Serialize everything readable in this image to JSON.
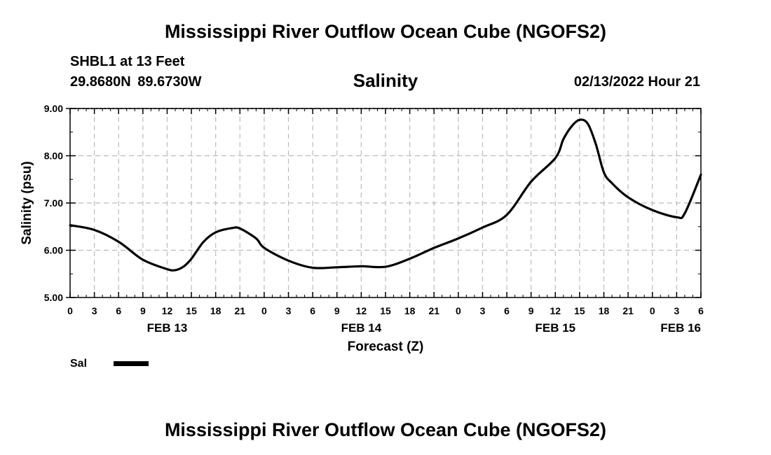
{
  "header": {
    "title": "Mississippi River Outflow Ocean Cube (NGOFS2)",
    "station": "SHBL1 at 13 Feet",
    "coords": "29.8680N  89.6730W",
    "variable": "Salinity",
    "datetime": "02/13/2022 Hour 21"
  },
  "legend": {
    "label": "Sal"
  },
  "footer": {
    "title": "Mississippi River Outflow Ocean Cube (NGOFS2)"
  },
  "colors": {
    "line": "#000000",
    "grid": "#bbbbbb"
  },
  "chart_data": {
    "type": "line",
    "title": "Salinity",
    "xlabel": "Forecast (Z)",
    "ylabel": "Salinity (psu)",
    "ylim": [
      5.0,
      9.0
    ],
    "xlim": [
      0,
      78
    ],
    "x_unit": "hours since FEB 13 00Z",
    "yticks": [
      "5.00",
      "6.00",
      "7.00",
      "8.00",
      "9.00"
    ],
    "xtick_labels": [
      "0",
      "3",
      "6",
      "9",
      "12",
      "15",
      "18",
      "21",
      "0",
      "3",
      "6",
      "9",
      "12",
      "15",
      "18",
      "21",
      "0",
      "3",
      "6",
      "9",
      "12",
      "15",
      "18",
      "21",
      "0",
      "3",
      "6"
    ],
    "day_labels": [
      {
        "label": "FEB 13",
        "hour": 12
      },
      {
        "label": "FEB 14",
        "hour": 36
      },
      {
        "label": "FEB 15",
        "hour": 60
      },
      {
        "label": "FEB 16",
        "hour": 78
      }
    ],
    "grid": true,
    "legend_position": "bottom-left",
    "series": [
      {
        "name": "Sal",
        "x": [
          0,
          3,
          6,
          9,
          12,
          13,
          14,
          15,
          16.5,
          18,
          20,
          21,
          23,
          24,
          27,
          30,
          33,
          36,
          39,
          42,
          45,
          48,
          51,
          54,
          57,
          60,
          61,
          62,
          63,
          64,
          65,
          66,
          67,
          69,
          72,
          75,
          76,
          78
        ],
        "y": [
          6.53,
          6.43,
          6.18,
          5.8,
          5.6,
          5.58,
          5.65,
          5.82,
          6.18,
          6.38,
          6.47,
          6.46,
          6.25,
          6.05,
          5.78,
          5.63,
          5.64,
          5.66,
          5.65,
          5.82,
          6.05,
          6.25,
          6.48,
          6.75,
          7.45,
          7.95,
          8.35,
          8.62,
          8.76,
          8.68,
          8.25,
          7.65,
          7.42,
          7.12,
          6.85,
          6.7,
          6.78,
          7.6
        ]
      }
    ]
  }
}
